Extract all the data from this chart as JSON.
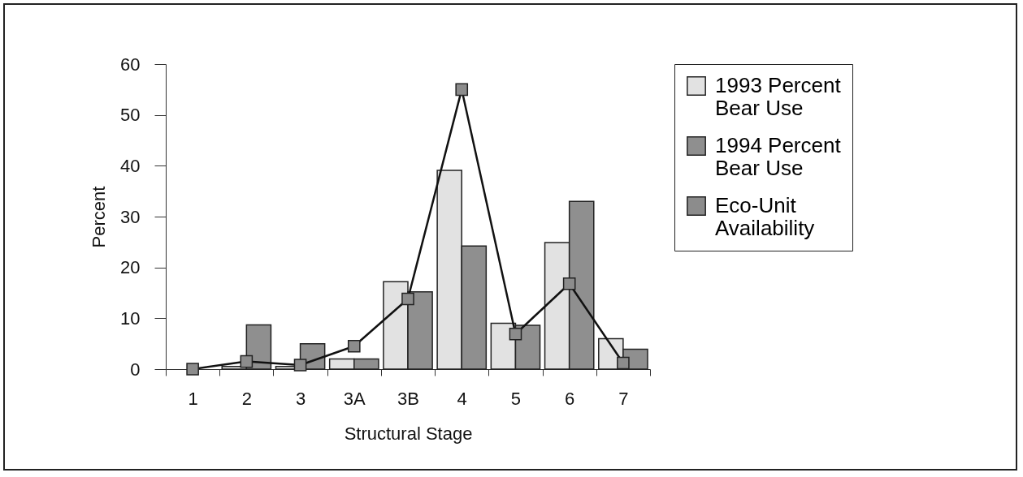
{
  "chart_data": {
    "type": "bar",
    "xlabel": "Structural Stage",
    "ylabel": "Percent",
    "categories": [
      "1",
      "2",
      "3",
      "3A",
      "3B",
      "4",
      "5",
      "6",
      "7"
    ],
    "series": [
      {
        "name": "1993 Percent Bear Use",
        "color": "#e2e2e2",
        "values": [
          null,
          0.5,
          0.5,
          2,
          17.2,
          39.1,
          9,
          24.9,
          6
        ]
      },
      {
        "name": "1994 Percent Bear Use",
        "color": "#8f8f8f",
        "values": [
          null,
          8.7,
          5,
          2,
          15.2,
          24.2,
          8.6,
          33,
          3.9
        ]
      },
      {
        "name": "Eco-Unit Availability",
        "type": "line",
        "color": "#8c8c8c",
        "marker": "square",
        "values": [
          0,
          1.5,
          0.8,
          4.5,
          13.8,
          55,
          6.9,
          16.8,
          1.2
        ]
      }
    ],
    "ylim": [
      0,
      60
    ],
    "yticks": [
      0,
      10,
      20,
      30,
      40,
      50,
      60
    ],
    "grid": false,
    "legend": "right"
  }
}
